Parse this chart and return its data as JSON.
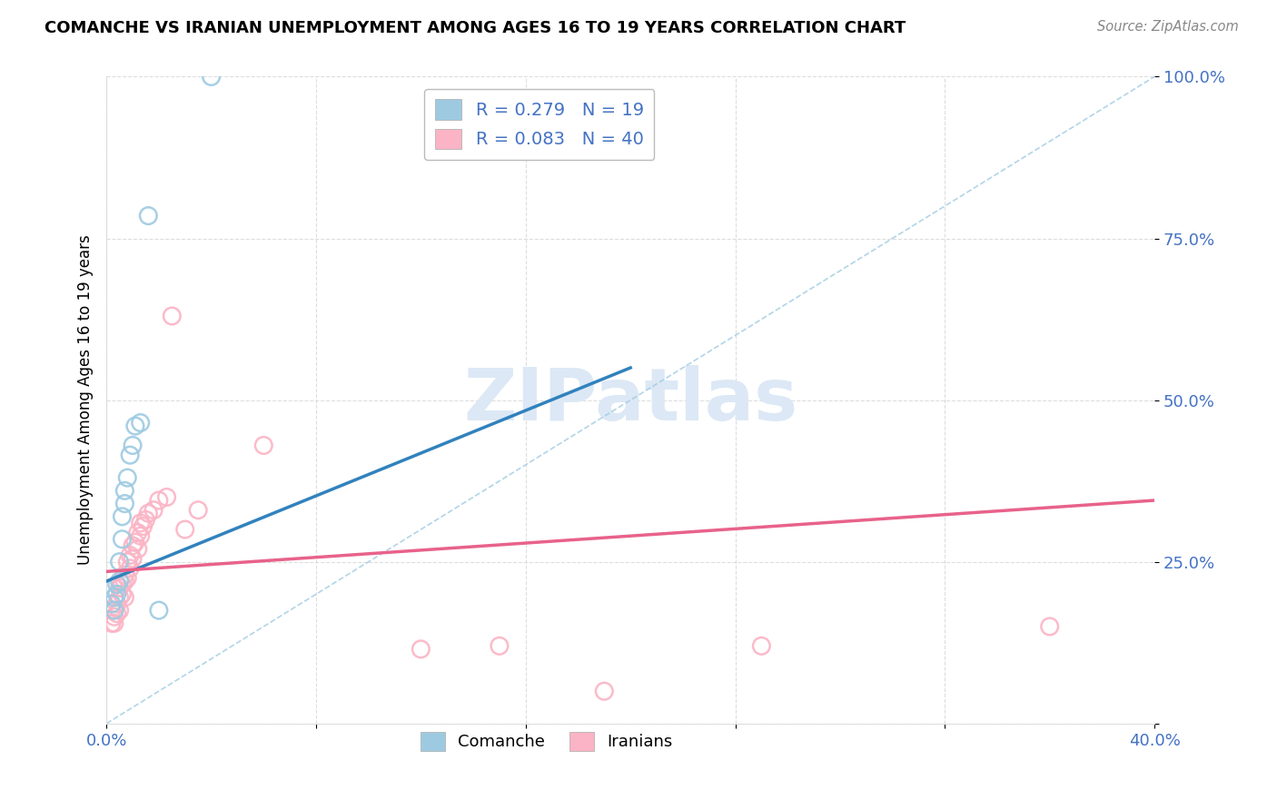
{
  "title": "COMANCHE VS IRANIAN UNEMPLOYMENT AMONG AGES 16 TO 19 YEARS CORRELATION CHART",
  "source": "Source: ZipAtlas.com",
  "ylabel": "Unemployment Among Ages 16 to 19 years",
  "xlim": [
    0.0,
    0.4
  ],
  "ylim": [
    0.0,
    1.0
  ],
  "xticks": [
    0.0,
    0.08,
    0.16,
    0.24,
    0.32,
    0.4
  ],
  "xtick_labels": [
    "0.0%",
    "",
    "",
    "",
    "",
    "40.0%"
  ],
  "yticks": [
    0.0,
    0.25,
    0.5,
    0.75,
    1.0
  ],
  "ytick_labels": [
    "",
    "25.0%",
    "50.0%",
    "75.0%",
    "100.0%"
  ],
  "comanche_x": [
    0.002,
    0.003,
    0.003,
    0.004,
    0.004,
    0.005,
    0.005,
    0.006,
    0.006,
    0.007,
    0.007,
    0.008,
    0.009,
    0.01,
    0.011,
    0.013,
    0.016,
    0.02,
    0.04
  ],
  "comanche_y": [
    0.185,
    0.175,
    0.195,
    0.2,
    0.215,
    0.22,
    0.25,
    0.285,
    0.32,
    0.34,
    0.36,
    0.38,
    0.415,
    0.43,
    0.46,
    0.465,
    0.785,
    0.175,
    1.0
  ],
  "iranians_x": [
    0.002,
    0.002,
    0.003,
    0.003,
    0.004,
    0.004,
    0.005,
    0.005,
    0.005,
    0.006,
    0.006,
    0.007,
    0.007,
    0.007,
    0.008,
    0.008,
    0.009,
    0.009,
    0.01,
    0.01,
    0.011,
    0.012,
    0.012,
    0.013,
    0.013,
    0.014,
    0.015,
    0.016,
    0.018,
    0.02,
    0.023,
    0.025,
    0.03,
    0.035,
    0.06,
    0.12,
    0.15,
    0.19,
    0.25,
    0.36
  ],
  "iranians_y": [
    0.155,
    0.175,
    0.155,
    0.165,
    0.17,
    0.185,
    0.195,
    0.175,
    0.21,
    0.2,
    0.215,
    0.195,
    0.22,
    0.23,
    0.225,
    0.25,
    0.24,
    0.26,
    0.255,
    0.275,
    0.28,
    0.27,
    0.295,
    0.29,
    0.31,
    0.305,
    0.315,
    0.325,
    0.33,
    0.345,
    0.35,
    0.63,
    0.3,
    0.33,
    0.43,
    0.115,
    0.12,
    0.05,
    0.12,
    0.15
  ],
  "comanche_R": 0.279,
  "comanche_N": 19,
  "iranians_R": 0.083,
  "iranians_N": 40,
  "blue_scatter_color": "#9ecae1",
  "pink_scatter_color": "#fbb4c5",
  "blue_line_color": "#3182bd",
  "pink_line_color": "#e8628a",
  "dashed_line_color": "#9ecae1",
  "watermark_color": "#dce8f5",
  "background_color": "#ffffff",
  "grid_color": "#dddddd",
  "blue_trend_x0": 0.0,
  "blue_trend_y0": 0.22,
  "blue_trend_x1": 0.2,
  "blue_trend_y1": 0.55,
  "pink_trend_x0": 0.0,
  "pink_trend_y0": 0.235,
  "pink_trend_x1": 0.4,
  "pink_trend_y1": 0.345
}
